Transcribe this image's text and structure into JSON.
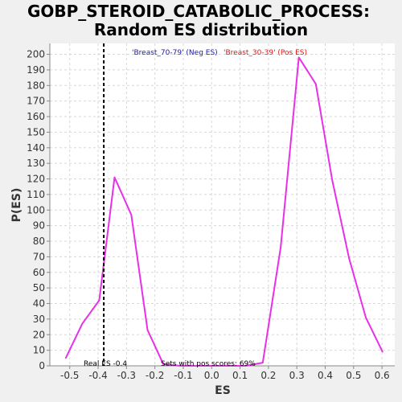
{
  "chart_data": {
    "type": "line",
    "title_lines": [
      "GOBP_STEROID_CATABOLIC_PROCESS:",
      "Random ES distribution"
    ],
    "xlabel": "ES",
    "ylabel": "P(ES)",
    "xlim": [
      -0.57,
      0.645
    ],
    "ylim": [
      0,
      207
    ],
    "xticks": [
      -0.5,
      -0.4,
      -0.3,
      -0.2,
      -0.1,
      0.0,
      0.1,
      0.2,
      0.3,
      0.4,
      0.5,
      0.6
    ],
    "xtick_labels": [
      "-0.5",
      "-0.4",
      "-0.3",
      "-0.2",
      "-0.1",
      "0.0",
      "0.1",
      "0.2",
      "0.3",
      "0.4",
      "0.5",
      "0.6"
    ],
    "yticks": [
      0,
      10,
      20,
      30,
      40,
      50,
      60,
      70,
      80,
      90,
      100,
      110,
      120,
      130,
      140,
      150,
      160,
      170,
      180,
      190,
      200
    ],
    "ytick_labels": [
      "0",
      "10",
      "20",
      "30",
      "40",
      "50",
      "60",
      "70",
      "80",
      "90",
      "100",
      "110",
      "120",
      "130",
      "140",
      "150",
      "160",
      "170",
      "180",
      "190",
      "200"
    ],
    "grid": true,
    "series": [
      {
        "color": "#e830e8",
        "x": [
          -0.514,
          -0.456,
          -0.396,
          -0.342,
          -0.283,
          -0.226,
          -0.17,
          -0.11,
          -0.054,
          0.005,
          0.063,
          0.12,
          0.18,
          0.243,
          0.307,
          0.367,
          0.425,
          0.484,
          0.543,
          0.602
        ],
        "y": [
          5,
          27,
          42,
          121,
          97,
          23,
          1,
          0,
          0,
          0,
          0,
          0,
          2,
          76,
          198,
          181,
          119,
          69,
          31,
          9
        ]
      }
    ],
    "real_es": -0.38,
    "annotations": {
      "neg_label": "'Breast_70-79' (Neg ES)",
      "pos_label": "'Breast_30-39' (Pos ES)",
      "real_es_label": "Real ES -0.4",
      "pos_scores_label": "Sets with pos scores: 69%"
    },
    "colors": {
      "neg_label": "#1a1aa8",
      "pos_label": "#d81818",
      "grid": "#d8d8d8",
      "plot_bg": "#ffffff",
      "page_bg": "#f0f0f0"
    }
  }
}
